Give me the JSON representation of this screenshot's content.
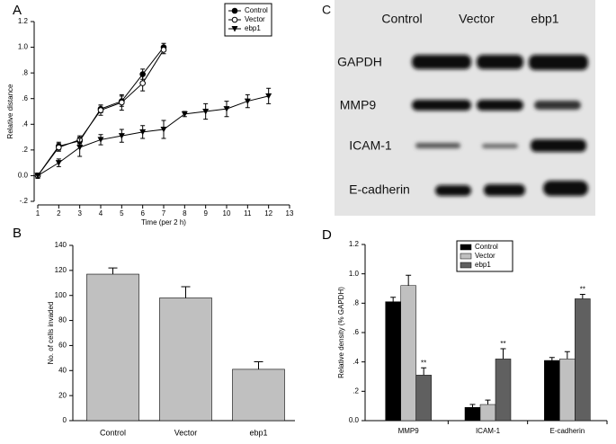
{
  "chart_data": [
    {
      "type": "line",
      "label": "A",
      "xlabel": "Time (per 2 h)",
      "ylabel": "Relative distance",
      "x": [
        1,
        2,
        3,
        4,
        5,
        6,
        7,
        8,
        9,
        10,
        11,
        12
      ],
      "series": [
        {
          "name": "Control",
          "color": "#000000",
          "marker": "circle",
          "values": [
            0,
            0.23,
            0.27,
            0.52,
            0.58,
            0.79,
            1.0,
            null,
            null,
            null,
            null,
            null
          ],
          "errors": [
            0.02,
            0.03,
            0.03,
            0.03,
            0.04,
            0.04,
            0.03,
            null,
            null,
            null,
            null,
            null
          ]
        },
        {
          "name": "Vector",
          "color": "#000000",
          "marker": "circle-open",
          "values": [
            0,
            0.22,
            0.28,
            0.51,
            0.57,
            0.72,
            0.98,
            null,
            null,
            null,
            null,
            null
          ],
          "errors": [
            0.02,
            0.03,
            0.03,
            0.04,
            0.06,
            0.06,
            0.03,
            null,
            null,
            null,
            null,
            null
          ]
        },
        {
          "name": "ebp1",
          "color": "#000000",
          "marker": "triangle-down",
          "values": [
            0,
            0.1,
            0.22,
            0.28,
            0.31,
            0.34,
            0.36,
            0.48,
            0.5,
            0.52,
            0.58,
            0.62
          ],
          "errors": [
            0.02,
            0.03,
            0.07,
            0.04,
            0.05,
            0.05,
            0.07,
            0.02,
            0.06,
            0.06,
            0.05,
            0.06
          ]
        }
      ],
      "xlim": [
        1,
        13
      ],
      "xticks": [
        1,
        2,
        3,
        4,
        5,
        6,
        7,
        8,
        9,
        10,
        11,
        12,
        13
      ],
      "ylim": [
        -0.2,
        1.2
      ],
      "yticks": [
        {
          "value": -0.2,
          "label": "-.2"
        },
        {
          "value": 0,
          "label": "0.0"
        },
        {
          "value": 0.2,
          "label": ".2"
        },
        {
          "value": 0.4,
          "label": ".4"
        },
        {
          "value": 0.6,
          "label": ".6"
        },
        {
          "value": 0.8,
          "label": ".8"
        },
        {
          "value": 1.0,
          "label": "1.0"
        },
        1.2
      ],
      "legend": "top-right"
    },
    {
      "type": "bar",
      "label": "B",
      "ylabel": "No. of cells invaded",
      "categories": [
        "Control",
        "Vector",
        "ebp1"
      ],
      "values": [
        117,
        98,
        41
      ],
      "errors": [
        5,
        9,
        6
      ],
      "color": "#c0c0c0",
      "ylim": [
        0,
        140
      ],
      "yticks": [
        0,
        20,
        40,
        60,
        80,
        100,
        120,
        140
      ]
    },
    {
      "type": "grouped-bar",
      "label": "D",
      "ylabel": "Relative density (% GAPDH)",
      "categories": [
        "MMP9",
        "ICAM-1",
        "E-cadherin"
      ],
      "series": [
        {
          "name": "Control",
          "color": "#000000",
          "values": [
            0.81,
            0.09,
            0.41
          ],
          "errors": [
            0.03,
            0.02,
            0.02
          ]
        },
        {
          "name": "Vector",
          "color": "#c0c0c0",
          "values": [
            0.92,
            0.11,
            0.42
          ],
          "errors": [
            0.07,
            0.03,
            0.05
          ]
        },
        {
          "name": "ebp1",
          "color": "#606060",
          "values": [
            0.31,
            0.42,
            0.83
          ],
          "errors": [
            0.05,
            0.07,
            0.03
          ]
        }
      ],
      "annotations": [
        "**",
        "**",
        "**"
      ],
      "ylim": [
        0,
        1.2
      ],
      "yticks": [
        {
          "value": 0,
          "label": "0.0"
        },
        {
          "value": 0.2,
          "label": ".2"
        },
        {
          "value": 0.4,
          "label": ".4"
        },
        {
          "value": 0.6,
          "label": ".6"
        },
        {
          "value": 0.8,
          "label": ".8"
        },
        {
          "value": 1.0,
          "label": "1.0"
        },
        1.2
      ],
      "legend": "top-center"
    }
  ],
  "blot": {
    "label": "C",
    "columns": [
      "Control",
      "Vector",
      "ebp1"
    ],
    "rows": [
      "GAPDH",
      "MMP9",
      "ICAM-1",
      "E-cadherin"
    ]
  }
}
